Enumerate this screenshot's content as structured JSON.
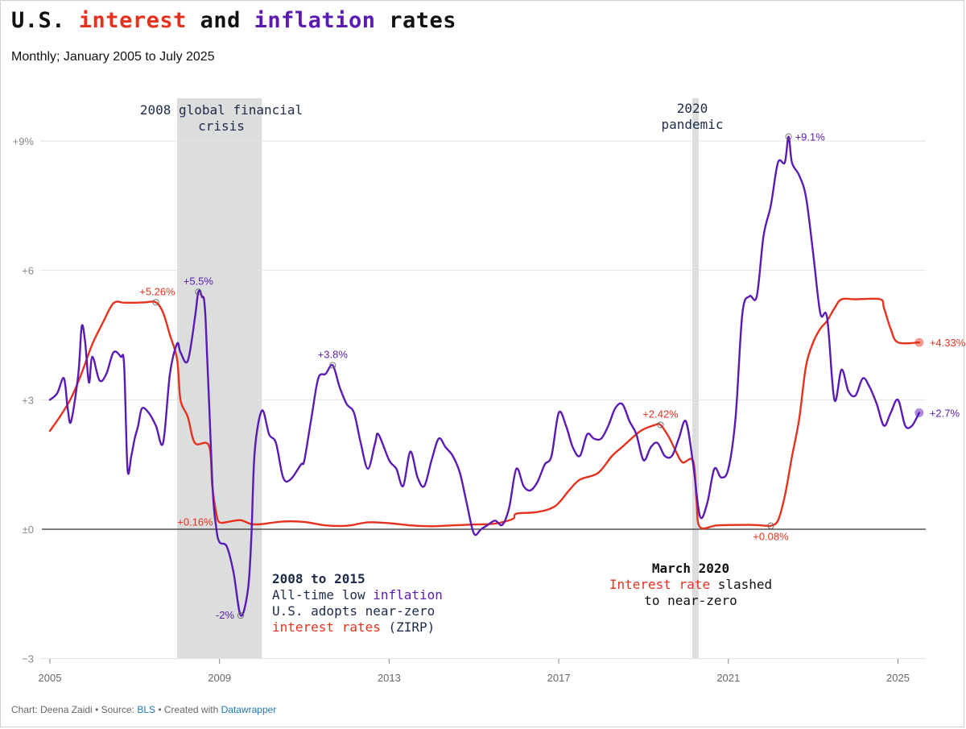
{
  "title": {
    "part1": "U.S.",
    "part2": "interest",
    "part3": "and",
    "part4": "inflation",
    "part5": "rates"
  },
  "subtitle": "Monthly; January 2005 to July 2025",
  "footer": {
    "chart_by": "Chart: Deena Zaidi",
    "sep1": "•",
    "source_label": "Source:",
    "source_link": "BLS",
    "sep2": "•",
    "created_with": "Created with",
    "tool_link": "Datawrapper"
  },
  "colors": {
    "interest": "#e5321f",
    "inflation": "#5b1ab2",
    "shade": "#dcdddd",
    "grid": "#e2e2e2",
    "zero": "#333333",
    "annotation": "#1e2a4a"
  },
  "chart_data": {
    "type": "line",
    "title": "U.S. interest and inflation rates",
    "subtitle": "Monthly; January 2005 to July 2025",
    "xlabel": "",
    "ylabel": "",
    "xlim": [
      2005.0,
      2025.9
    ],
    "ylim": [
      -3,
      10
    ],
    "x_ticks": [
      2005,
      2009,
      2013,
      2017,
      2021,
      2025
    ],
    "x_tick_labels": [
      "2005",
      "2009",
      "2013",
      "2017",
      "2021",
      "2025"
    ],
    "y_ticks": [
      -3,
      0,
      3,
      6,
      9
    ],
    "y_tick_labels": [
      "−3",
      "±0",
      "+3",
      "+6",
      "+9%"
    ],
    "grid": true,
    "series": [
      {
        "name": "Interest rate",
        "key": "interest",
        "points": [
          [
            2005.0,
            2.28
          ],
          [
            2005.25,
            2.63
          ],
          [
            2005.5,
            3.04
          ],
          [
            2005.75,
            3.62
          ],
          [
            2006.0,
            4.29
          ],
          [
            2006.25,
            4.79
          ],
          [
            2006.5,
            5.24
          ],
          [
            2006.75,
            5.25
          ],
          [
            2007.0,
            5.25
          ],
          [
            2007.25,
            5.26
          ],
          [
            2007.5,
            5.26
          ],
          [
            2007.67,
            5.02
          ],
          [
            2007.83,
            4.5
          ],
          [
            2008.0,
            3.94
          ],
          [
            2008.08,
            3.0
          ],
          [
            2008.25,
            2.61
          ],
          [
            2008.42,
            2.0
          ],
          [
            2008.75,
            1.94
          ],
          [
            2008.83,
            1.0
          ],
          [
            2008.92,
            0.39
          ],
          [
            2009.0,
            0.16
          ],
          [
            2009.25,
            0.18
          ],
          [
            2009.5,
            0.21
          ],
          [
            2009.75,
            0.12
          ],
          [
            2010.0,
            0.12
          ],
          [
            2010.5,
            0.18
          ],
          [
            2011.0,
            0.17
          ],
          [
            2011.5,
            0.09
          ],
          [
            2012.0,
            0.08
          ],
          [
            2012.5,
            0.16
          ],
          [
            2013.0,
            0.14
          ],
          [
            2013.5,
            0.09
          ],
          [
            2014.0,
            0.07
          ],
          [
            2014.5,
            0.09
          ],
          [
            2015.0,
            0.11
          ],
          [
            2015.5,
            0.13
          ],
          [
            2015.92,
            0.24
          ],
          [
            2016.0,
            0.36
          ],
          [
            2016.5,
            0.4
          ],
          [
            2016.92,
            0.54
          ],
          [
            2017.25,
            0.91
          ],
          [
            2017.5,
            1.15
          ],
          [
            2017.92,
            1.3
          ],
          [
            2018.25,
            1.69
          ],
          [
            2018.5,
            1.91
          ],
          [
            2018.92,
            2.27
          ],
          [
            2019.25,
            2.41
          ],
          [
            2019.4,
            2.42
          ],
          [
            2019.6,
            2.13
          ],
          [
            2019.75,
            1.83
          ],
          [
            2019.92,
            1.55
          ],
          [
            2020.17,
            1.58
          ],
          [
            2020.25,
            0.65
          ],
          [
            2020.33,
            0.05
          ],
          [
            2020.75,
            0.09
          ],
          [
            2021.5,
            0.1
          ],
          [
            2021.92,
            0.08
          ],
          [
            2022.0,
            0.08
          ],
          [
            2022.17,
            0.2
          ],
          [
            2022.33,
            0.77
          ],
          [
            2022.5,
            1.68
          ],
          [
            2022.67,
            2.56
          ],
          [
            2022.83,
            3.78
          ],
          [
            2023.0,
            4.33
          ],
          [
            2023.17,
            4.65
          ],
          [
            2023.33,
            4.83
          ],
          [
            2023.5,
            5.12
          ],
          [
            2023.67,
            5.33
          ],
          [
            2024.0,
            5.33
          ],
          [
            2024.58,
            5.33
          ],
          [
            2024.67,
            5.13
          ],
          [
            2024.83,
            4.64
          ],
          [
            2025.0,
            4.33
          ],
          [
            2025.5,
            4.33
          ]
        ]
      },
      {
        "name": "Inflation rate",
        "key": "inflation",
        "points": [
          [
            2005.0,
            3.0
          ],
          [
            2005.17,
            3.15
          ],
          [
            2005.33,
            3.5
          ],
          [
            2005.42,
            2.8
          ],
          [
            2005.5,
            2.5
          ],
          [
            2005.67,
            3.6
          ],
          [
            2005.75,
            4.7
          ],
          [
            2005.83,
            4.35
          ],
          [
            2005.92,
            3.4
          ],
          [
            2006.0,
            4.0
          ],
          [
            2006.17,
            3.45
          ],
          [
            2006.33,
            3.6
          ],
          [
            2006.5,
            4.1
          ],
          [
            2006.67,
            4.0
          ],
          [
            2006.75,
            3.8
          ],
          [
            2006.83,
            1.4
          ],
          [
            2006.92,
            1.7
          ],
          [
            2007.0,
            2.1
          ],
          [
            2007.08,
            2.4
          ],
          [
            2007.17,
            2.8
          ],
          [
            2007.33,
            2.7
          ],
          [
            2007.5,
            2.4
          ],
          [
            2007.67,
            2.0
          ],
          [
            2007.83,
            3.6
          ],
          [
            2008.0,
            4.3
          ],
          [
            2008.08,
            4.1
          ],
          [
            2008.25,
            3.9
          ],
          [
            2008.42,
            4.9
          ],
          [
            2008.5,
            5.5
          ],
          [
            2008.58,
            5.4
          ],
          [
            2008.67,
            4.9
          ],
          [
            2008.83,
            1.1
          ],
          [
            2008.92,
            0.05
          ],
          [
            2009.0,
            -0.3
          ],
          [
            2009.17,
            -0.4
          ],
          [
            2009.33,
            -1.0
          ],
          [
            2009.5,
            -2.0
          ],
          [
            2009.67,
            -1.4
          ],
          [
            2009.75,
            -0.2
          ],
          [
            2009.83,
            1.8
          ],
          [
            2010.0,
            2.75
          ],
          [
            2010.17,
            2.2
          ],
          [
            2010.33,
            2.0
          ],
          [
            2010.5,
            1.2
          ],
          [
            2010.67,
            1.15
          ],
          [
            2010.92,
            1.5
          ],
          [
            2011.0,
            1.6
          ],
          [
            2011.17,
            2.6
          ],
          [
            2011.33,
            3.5
          ],
          [
            2011.5,
            3.6
          ],
          [
            2011.67,
            3.8
          ],
          [
            2011.83,
            3.3
          ],
          [
            2012.0,
            2.9
          ],
          [
            2012.17,
            2.7
          ],
          [
            2012.33,
            2.0
          ],
          [
            2012.5,
            1.4
          ],
          [
            2012.67,
            2.0
          ],
          [
            2012.75,
            2.2
          ],
          [
            2013.0,
            1.6
          ],
          [
            2013.17,
            1.4
          ],
          [
            2013.33,
            1.0
          ],
          [
            2013.5,
            1.8
          ],
          [
            2013.67,
            1.2
          ],
          [
            2013.83,
            1.0
          ],
          [
            2014.0,
            1.6
          ],
          [
            2014.17,
            2.1
          ],
          [
            2014.33,
            1.9
          ],
          [
            2014.5,
            1.7
          ],
          [
            2014.67,
            1.3
          ],
          [
            2014.83,
            0.6
          ],
          [
            2015.0,
            -0.1
          ],
          [
            2015.17,
            0.0
          ],
          [
            2015.33,
            0.1
          ],
          [
            2015.5,
            0.2
          ],
          [
            2015.67,
            0.1
          ],
          [
            2015.83,
            0.5
          ],
          [
            2016.0,
            1.4
          ],
          [
            2016.17,
            1.0
          ],
          [
            2016.33,
            0.9
          ],
          [
            2016.5,
            1.1
          ],
          [
            2016.67,
            1.5
          ],
          [
            2016.83,
            1.7
          ],
          [
            2017.0,
            2.7
          ],
          [
            2017.17,
            2.4
          ],
          [
            2017.33,
            1.9
          ],
          [
            2017.5,
            1.7
          ],
          [
            2017.67,
            2.2
          ],
          [
            2017.83,
            2.1
          ],
          [
            2018.0,
            2.1
          ],
          [
            2018.17,
            2.4
          ],
          [
            2018.33,
            2.8
          ],
          [
            2018.5,
            2.9
          ],
          [
            2018.67,
            2.5
          ],
          [
            2018.83,
            2.2
          ],
          [
            2019.0,
            1.6
          ],
          [
            2019.17,
            1.9
          ],
          [
            2019.33,
            2.0
          ],
          [
            2019.5,
            1.7
          ],
          [
            2019.67,
            1.7
          ],
          [
            2019.83,
            2.1
          ],
          [
            2020.0,
            2.5
          ],
          [
            2020.17,
            1.5
          ],
          [
            2020.33,
            0.3
          ],
          [
            2020.5,
            0.6
          ],
          [
            2020.67,
            1.4
          ],
          [
            2020.83,
            1.2
          ],
          [
            2021.0,
            1.4
          ],
          [
            2021.17,
            2.6
          ],
          [
            2021.33,
            5.0
          ],
          [
            2021.5,
            5.4
          ],
          [
            2021.67,
            5.4
          ],
          [
            2021.83,
            6.8
          ],
          [
            2022.0,
            7.5
          ],
          [
            2022.17,
            8.5
          ],
          [
            2022.33,
            8.5
          ],
          [
            2022.42,
            9.1
          ],
          [
            2022.5,
            8.5
          ],
          [
            2022.67,
            8.2
          ],
          [
            2022.83,
            7.7
          ],
          [
            2023.0,
            6.4
          ],
          [
            2023.17,
            5.0
          ],
          [
            2023.33,
            4.9
          ],
          [
            2023.5,
            3.0
          ],
          [
            2023.67,
            3.7
          ],
          [
            2023.83,
            3.2
          ],
          [
            2024.0,
            3.1
          ],
          [
            2024.17,
            3.5
          ],
          [
            2024.33,
            3.3
          ],
          [
            2024.5,
            2.9
          ],
          [
            2024.67,
            2.4
          ],
          [
            2024.83,
            2.7
          ],
          [
            2025.0,
            3.0
          ],
          [
            2025.17,
            2.4
          ],
          [
            2025.33,
            2.4
          ],
          [
            2025.5,
            2.7
          ]
        ]
      }
    ],
    "point_labels": [
      {
        "series": "interest",
        "x": 2007.5,
        "y": 5.26,
        "text": "+5.26%",
        "anchor": "above-left",
        "marker": "circle"
      },
      {
        "series": "inflation",
        "x": 2008.5,
        "y": 5.5,
        "text": "+5.5%",
        "anchor": "above",
        "marker": "circle"
      },
      {
        "series": "inflation",
        "x": 2011.67,
        "y": 3.8,
        "text": "+3.8%",
        "anchor": "above",
        "marker": "circle"
      },
      {
        "series": "interest",
        "x": 2009.0,
        "y": 0.16,
        "text": "+0.16%",
        "anchor": "left",
        "marker": "none"
      },
      {
        "series": "inflation",
        "x": 2009.5,
        "y": -2.0,
        "text": "-2%",
        "anchor": "left",
        "marker": "circle"
      },
      {
        "series": "interest",
        "x": 2019.4,
        "y": 2.42,
        "text": "+2.42%",
        "anchor": "above",
        "marker": "circle"
      },
      {
        "series": "inflation",
        "x": 2022.42,
        "y": 9.1,
        "text": "+9.1%",
        "anchor": "right",
        "marker": "circle"
      },
      {
        "series": "interest",
        "x": 2022.0,
        "y": 0.08,
        "text": "+0.08%",
        "anchor": "below",
        "marker": "circle"
      },
      {
        "series": "interest",
        "x": 2025.5,
        "y": 4.33,
        "text": "+4.33%",
        "anchor": "end",
        "marker": "dot"
      },
      {
        "series": "inflation",
        "x": 2025.5,
        "y": 2.7,
        "text": "+2.7%",
        "anchor": "end",
        "marker": "dot"
      }
    ],
    "shaded_ranges": [
      {
        "name": "gfc",
        "x_start": 2008.0,
        "x_end": 2010.0,
        "label_line1": "2008 global financial",
        "label_line2": "crisis"
      },
      {
        "name": "pandemic",
        "x_start": 2020.15,
        "x_end": 2020.3,
        "label_line1": "2020",
        "label_line2": "pandemic"
      }
    ],
    "annotations": {
      "zirp": {
        "heading": "2008 to 2015",
        "line1_a": "All-time low",
        "line1_b": "inflation",
        "line2": "U.S. adopts near-zero",
        "line3_a": "interest rates",
        "line3_b": "(ZIRP)"
      },
      "march2020": {
        "heading": "March 2020",
        "line1_a": "Interest rate",
        "line1_b": "slashed",
        "line2": "to near-zero"
      }
    }
  }
}
